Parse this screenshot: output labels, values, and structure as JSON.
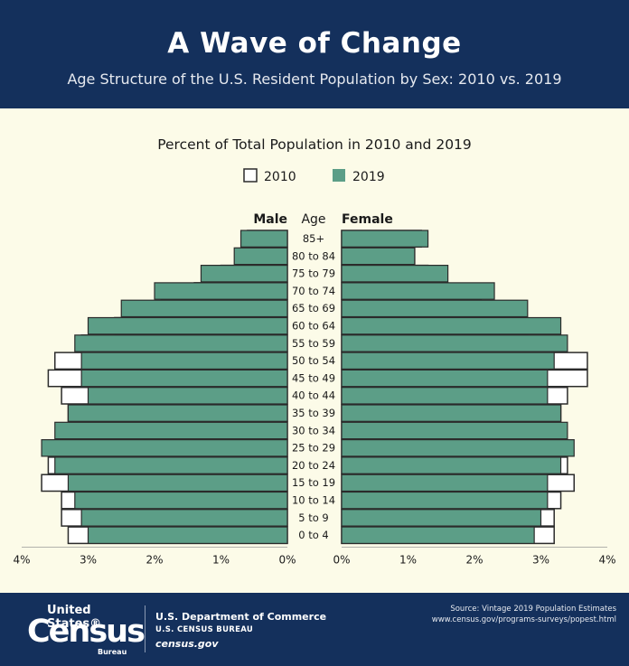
{
  "header": {
    "title": "A Wave of Change",
    "subtitle": "Age Structure of the U.S. Resident Population by Sex: 2010 vs. 2019"
  },
  "footer": {
    "logo_top": "United States®",
    "logo_main": "Census",
    "logo_bottom": "Bureau",
    "department": "U.S. Department of Commerce",
    "bureau": "U.S. CENSUS BUREAU",
    "website": "census.gov",
    "source_line1": "Source: Vintage 2019 Population Estimates",
    "source_line2": "www.census.gov/programs-surveys/popest.html"
  },
  "colors": {
    "header_bg": "#14305c",
    "page_bg": "#fcfbe8",
    "bar_2019": "#5c9e87",
    "outline_2010": "#2b2b2b"
  },
  "chart_data": {
    "type": "bar",
    "orientation": "horizontal",
    "title": "Percent of Total Population in 2010 and 2019",
    "left_label": "Male",
    "right_label": "Female",
    "center_label": "Age",
    "legend": [
      "2010",
      "2019"
    ],
    "legend_placement": "top-center",
    "xlim": [
      0,
      4
    ],
    "x_ticks_left": [
      "4%",
      "3%",
      "2%",
      "1%",
      "0%"
    ],
    "x_ticks_right": [
      "0%",
      "1%",
      "2%",
      "3%",
      "4%"
    ],
    "age_groups": [
      "85+",
      "80 to 84",
      "75 to 79",
      "70 to 74",
      "65 to 69",
      "60 to 64",
      "55 to 59",
      "50 to 54",
      "45 to 49",
      "40 to 44",
      "35 to 39",
      "30 to 34",
      "25 to 29",
      "20 to 24",
      "15 to 19",
      "10 to 14",
      "5 to 9",
      "0 to 4"
    ],
    "series": [
      {
        "name": "2010",
        "sex": "Male",
        "values": [
          0.6,
          0.7,
          1.0,
          1.4,
          1.9,
          2.6,
          3.1,
          3.5,
          3.6,
          3.4,
          3.3,
          3.2,
          3.4,
          3.6,
          3.7,
          3.4,
          3.4,
          3.3
        ]
      },
      {
        "name": "2019",
        "sex": "Male",
        "values": [
          0.7,
          0.8,
          1.3,
          2.0,
          2.5,
          3.0,
          3.2,
          3.1,
          3.1,
          3.0,
          3.3,
          3.5,
          3.7,
          3.5,
          3.3,
          3.2,
          3.1,
          3.0
        ]
      },
      {
        "name": "2010",
        "sex": "Female",
        "values": [
          1.2,
          1.1,
          1.3,
          1.6,
          2.1,
          2.8,
          3.3,
          3.7,
          3.7,
          3.4,
          3.3,
          3.2,
          3.4,
          3.4,
          3.5,
          3.3,
          3.2,
          3.2
        ]
      },
      {
        "name": "2019",
        "sex": "Female",
        "values": [
          1.3,
          1.1,
          1.6,
          2.3,
          2.8,
          3.3,
          3.4,
          3.2,
          3.1,
          3.1,
          3.3,
          3.4,
          3.5,
          3.3,
          3.1,
          3.1,
          3.0,
          2.9
        ]
      }
    ]
  }
}
